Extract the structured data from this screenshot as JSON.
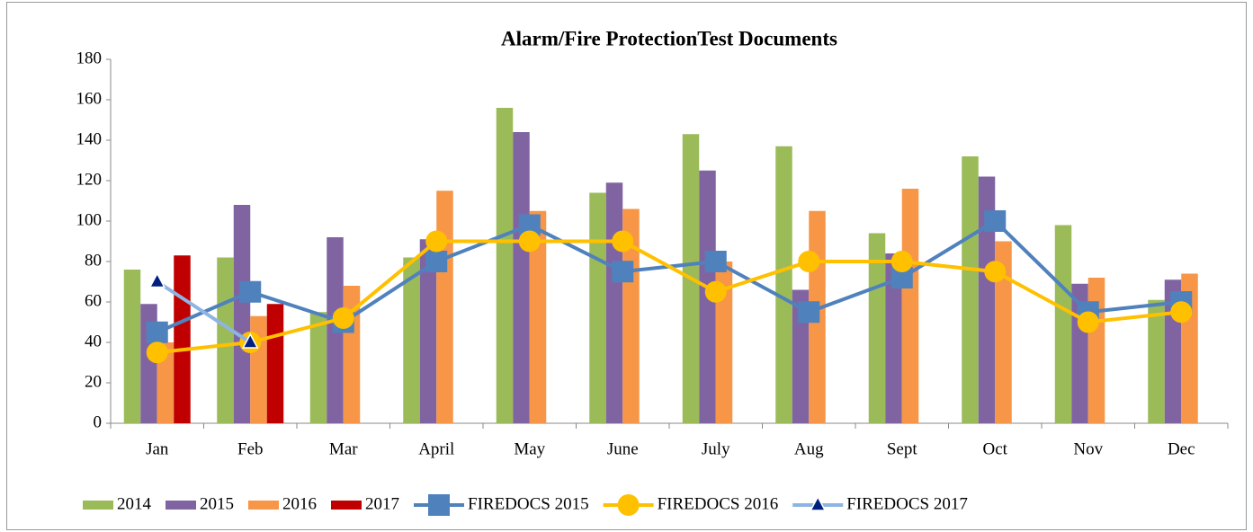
{
  "chart_data": {
    "type": "bar",
    "title": "Alarm/Fire ProtectionTest Documents",
    "categories": [
      "Jan",
      "Feb",
      "Mar",
      "April",
      "May",
      "June",
      "July",
      "Aug",
      "Sept",
      "Oct",
      "Nov",
      "Dec"
    ],
    "ylim": [
      0,
      180
    ],
    "yticks": [
      0,
      20,
      40,
      60,
      80,
      100,
      120,
      140,
      160,
      180
    ],
    "grid": false,
    "legend": "bottom",
    "series": [
      {
        "name": "2014",
        "type": "bar",
        "color": "#9bbb59",
        "values": [
          76,
          82,
          55,
          82,
          156,
          114,
          143,
          137,
          94,
          132,
          98,
          61
        ]
      },
      {
        "name": "2015",
        "type": "bar",
        "color": "#8064a2",
        "values": [
          59,
          108,
          92,
          91,
          144,
          119,
          125,
          66,
          84,
          122,
          69,
          71
        ]
      },
      {
        "name": "2016",
        "type": "bar",
        "color": "#f79646",
        "values": [
          40,
          53,
          68,
          115,
          105,
          106,
          80,
          105,
          116,
          90,
          72,
          74
        ]
      },
      {
        "name": "2017",
        "type": "bar",
        "color": "#c00000",
        "values": [
          83,
          59,
          null,
          null,
          null,
          null,
          null,
          null,
          null,
          null,
          null,
          null
        ]
      },
      {
        "name": "FIREDOCS 2015",
        "type": "line",
        "marker": "square",
        "color": "#4f81bd",
        "values": [
          45,
          65,
          50,
          80,
          98,
          75,
          80,
          55,
          72,
          100,
          55,
          60
        ]
      },
      {
        "name": "FIREDOCS 2016",
        "type": "line",
        "marker": "circle",
        "color": "#ffc000",
        "values": [
          35,
          40,
          52,
          90,
          90,
          90,
          65,
          80,
          80,
          75,
          50,
          55
        ]
      },
      {
        "name": "FIREDOCS 2017",
        "type": "line",
        "marker": "triangle",
        "color": "#8eb4e3",
        "marker_color": "#002080",
        "values": [
          70,
          40,
          null,
          null,
          null,
          null,
          null,
          null,
          null,
          null,
          null,
          null
        ]
      }
    ]
  }
}
